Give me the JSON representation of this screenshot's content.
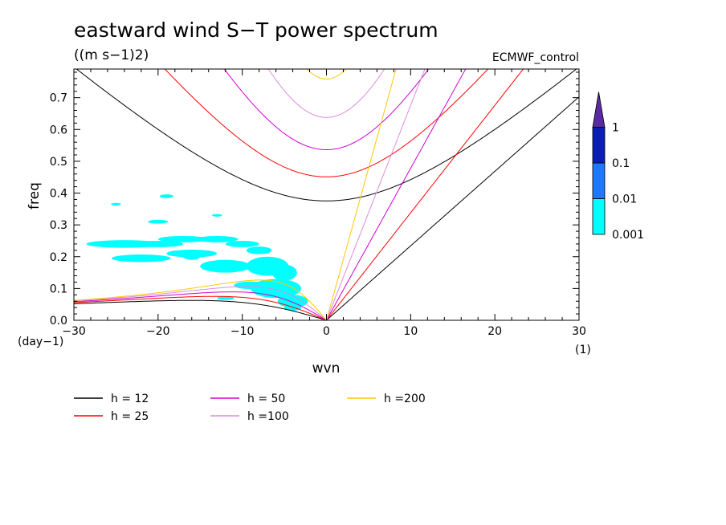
{
  "chart_data": {
    "type": "contour",
    "title": "eastward wind S−T power spectrum",
    "subtitle": "((m s−1)2)",
    "source_label": "ECMWF_control",
    "xlabel": "wvn",
    "ylabel": "freq",
    "x_unit": "(1)",
    "y_unit": "(day−1)",
    "xlim": [
      -30,
      30
    ],
    "ylim": [
      0,
      0.79
    ],
    "x_ticks": [
      -30,
      -20,
      -10,
      0,
      10,
      20,
      30
    ],
    "x_tick_labels": [
      "−30",
      "−20",
      "−10",
      "0",
      "10",
      "20",
      "30"
    ],
    "y_ticks": [
      0,
      0.1,
      0.2,
      0.3,
      0.4,
      0.5,
      0.6,
      0.7
    ],
    "y_tick_labels": [
      "0.0",
      "0.1",
      "0.2",
      "0.3",
      "0.4",
      "0.5",
      "0.6",
      "0.7"
    ],
    "colorbar": {
      "levels": [
        "0.001",
        "0.01",
        "0.1",
        "1"
      ],
      "colors": [
        "#00ffff",
        "#1e78ff",
        "#0a1eb4",
        "#2a0f8c",
        "#5a2aa0"
      ]
    },
    "power_patches_shaded_level": "0.001",
    "power_patches": [
      {
        "x": -25,
        "y": 0.365,
        "rx": 0.6,
        "ry": 0.004
      },
      {
        "x": -24,
        "y": 0.24,
        "rx": 4.5,
        "ry": 0.012
      },
      {
        "x": -20,
        "y": 0.24,
        "rx": 3.0,
        "ry": 0.01
      },
      {
        "x": -17,
        "y": 0.255,
        "rx": 3.0,
        "ry": 0.01
      },
      {
        "x": -13,
        "y": 0.255,
        "rx": 2.5,
        "ry": 0.01
      },
      {
        "x": -22,
        "y": 0.195,
        "rx": 3.5,
        "ry": 0.012
      },
      {
        "x": -16,
        "y": 0.21,
        "rx": 3.0,
        "ry": 0.012
      },
      {
        "x": -8,
        "y": 0.22,
        "rx": 1.5,
        "ry": 0.012
      },
      {
        "x": -10,
        "y": 0.24,
        "rx": 2.0,
        "ry": 0.01
      },
      {
        "x": -12,
        "y": 0.17,
        "rx": 3.0,
        "ry": 0.02
      },
      {
        "x": -7,
        "y": 0.17,
        "rx": 2.5,
        "ry": 0.03
      },
      {
        "x": -5,
        "y": 0.15,
        "rx": 1.5,
        "ry": 0.025
      },
      {
        "x": -6,
        "y": 0.1,
        "rx": 3.0,
        "ry": 0.03
      },
      {
        "x": -9,
        "y": 0.11,
        "rx": 2.0,
        "ry": 0.012
      },
      {
        "x": -4,
        "y": 0.06,
        "rx": 1.8,
        "ry": 0.02
      },
      {
        "x": -12,
        "y": 0.07,
        "rx": 1.0,
        "ry": 0.006
      },
      {
        "x": -16,
        "y": 0.2,
        "rx": 1.0,
        "ry": 0.01
      },
      {
        "x": -4,
        "y": 0.04,
        "rx": 1.0,
        "ry": 0.01
      },
      {
        "x": -19,
        "y": 0.39,
        "rx": 0.8,
        "ry": 0.006
      },
      {
        "x": -20,
        "y": 0.31,
        "rx": 1.2,
        "ry": 0.006
      },
      {
        "x": -13,
        "y": 0.33,
        "rx": 0.6,
        "ry": 0.004
      }
    ],
    "series": [
      {
        "name": "h = 12",
        "h": 12,
        "color": "#000000"
      },
      {
        "name": "h = 25",
        "h": 25,
        "color": "#ff0000"
      },
      {
        "name": "h = 50",
        "h": 50,
        "color": "#d200d2"
      },
      {
        "name": "h =100",
        "h": 100,
        "color": "#dc8cdc"
      },
      {
        "name": "h =200",
        "h": 200,
        "color": "#ffc800"
      }
    ]
  }
}
